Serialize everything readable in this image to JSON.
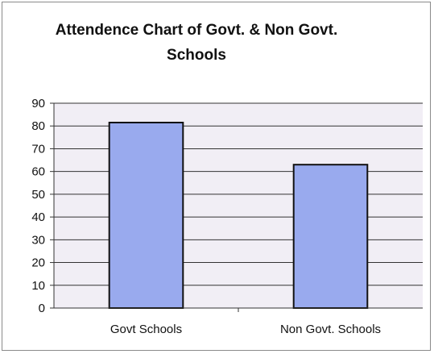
{
  "chart_data": {
    "type": "bar",
    "title_lines": [
      "Attendence Chart of Govt. & Non Govt.",
      "Schools"
    ],
    "categories": [
      "Govt Schools",
      "Non Govt. Schools"
    ],
    "values": [
      81.5,
      63
    ],
    "ylim": [
      0,
      90
    ],
    "yticks": [
      "0",
      "10",
      "20",
      "30",
      "40",
      "50",
      "60",
      "70",
      "80",
      "90"
    ],
    "grid": true,
    "bar_color": "#99aaee",
    "bar_edge_color": "#111111",
    "plot_background": "#f1eef5"
  }
}
